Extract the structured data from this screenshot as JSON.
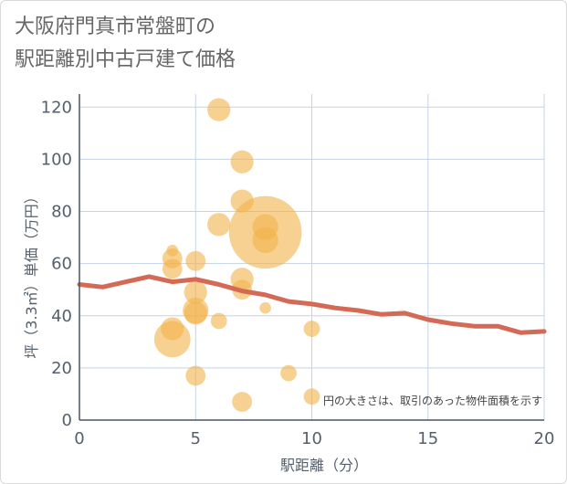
{
  "chart_data": {
    "type": "scatter",
    "title_lines": [
      "大阪府門真市常盤町の",
      "駅距離別中古戸建て価格"
    ],
    "xlabel": "駅距離（分）",
    "ylabel": "坪（3.3㎡）単価（万円）",
    "xlim": [
      0,
      20
    ],
    "ylim": [
      0,
      125
    ],
    "xticks": [
      0,
      5,
      10,
      15,
      20
    ],
    "yticks": [
      0,
      20,
      40,
      60,
      80,
      100,
      120
    ],
    "grid": true,
    "annotation": "円の大きさは、取引のあった物件面積を示す",
    "colors": {
      "bubble": "#f2b24a",
      "line": "#d46a55",
      "grid": "#c5d3e3",
      "axis": "#4b5563"
    },
    "bubble_series": [
      {
        "x": 4,
        "y": 65,
        "size": 1
      },
      {
        "x": 4,
        "y": 62,
        "size": 3
      },
      {
        "x": 4,
        "y": 58,
        "size": 3
      },
      {
        "x": 4,
        "y": 35,
        "size": 4
      },
      {
        "x": 4,
        "y": 31,
        "size": 10
      },
      {
        "x": 5,
        "y": 61,
        "size": 3
      },
      {
        "x": 5,
        "y": 49,
        "size": 4
      },
      {
        "x": 5,
        "y": 42,
        "size": 5
      },
      {
        "x": 5,
        "y": 41,
        "size": 4
      },
      {
        "x": 5,
        "y": 17,
        "size": 3
      },
      {
        "x": 6,
        "y": 119,
        "size": 4
      },
      {
        "x": 6,
        "y": 75,
        "size": 4
      },
      {
        "x": 6,
        "y": 38,
        "size": 2
      },
      {
        "x": 7,
        "y": 99,
        "size": 4
      },
      {
        "x": 7,
        "y": 84,
        "size": 4
      },
      {
        "x": 7,
        "y": 54,
        "size": 4
      },
      {
        "x": 7,
        "y": 50,
        "size": 3
      },
      {
        "x": 7,
        "y": 7,
        "size": 3
      },
      {
        "x": 8,
        "y": 72,
        "size": 40
      },
      {
        "x": 8,
        "y": 74,
        "size": 5
      },
      {
        "x": 8,
        "y": 69,
        "size": 5
      },
      {
        "x": 8,
        "y": 43,
        "size": 1
      },
      {
        "x": 9,
        "y": 18,
        "size": 2
      },
      {
        "x": 10,
        "y": 35,
        "size": 2
      },
      {
        "x": 10,
        "y": 9,
        "size": 2
      }
    ],
    "line_series": {
      "name": "average",
      "x": [
        0,
        1,
        2,
        3,
        4,
        5,
        6,
        7,
        8,
        9,
        10,
        11,
        12,
        13,
        14,
        15,
        16,
        17,
        18,
        19,
        20
      ],
      "y": [
        52,
        51,
        53,
        55,
        53,
        54,
        52,
        49.5,
        48,
        45.5,
        44.5,
        43,
        42,
        40.5,
        41,
        38.5,
        37,
        36,
        36,
        33.5,
        34
      ]
    }
  }
}
